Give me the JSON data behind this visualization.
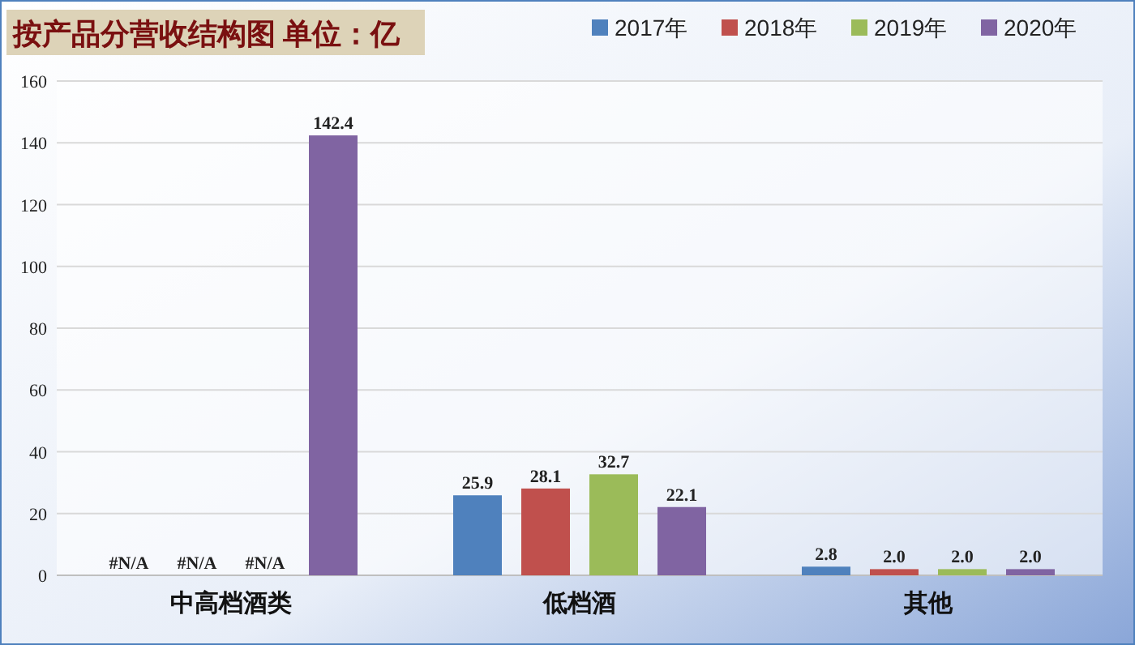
{
  "chart_data": {
    "type": "bar",
    "title": "按产品分营收结构图 单位：亿",
    "categories": [
      "中高档酒类",
      "低档酒",
      "其他"
    ],
    "series": [
      {
        "name": "2017年",
        "color": "#4f81bd",
        "values": [
          null,
          25.9,
          2.8
        ],
        "value_labels": [
          "#N/A",
          "25.9",
          "2.8"
        ]
      },
      {
        "name": "2018年",
        "color": "#c0504d",
        "values": [
          null,
          28.1,
          2.0
        ],
        "value_labels": [
          "#N/A",
          "28.1",
          "2.0"
        ]
      },
      {
        "name": "2019年",
        "color": "#9bbb59",
        "values": [
          null,
          32.7,
          2.0
        ],
        "value_labels": [
          "#N/A",
          "32.7",
          "2.0"
        ]
      },
      {
        "name": "2020年",
        "color": "#8064a2",
        "values": [
          142.4,
          22.1,
          2.0
        ],
        "value_labels": [
          "142.4",
          "22.1",
          "2.0"
        ]
      }
    ],
    "ylim": [
      0,
      160
    ],
    "yticks": [
      0,
      20,
      40,
      60,
      80,
      100,
      120,
      140,
      160
    ],
    "grid": "y",
    "legend": "top right"
  }
}
